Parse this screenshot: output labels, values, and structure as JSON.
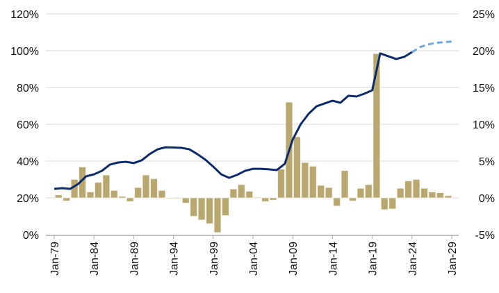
{
  "chart_data": {
    "type": "bar+line",
    "title": "",
    "grid": true,
    "legend": "none",
    "colors": {
      "bars": "#b8a870",
      "line": "#0b2a6b",
      "projection": "#6aa7e0",
      "grid": "#d9d9d9"
    },
    "x_tick_labels": [
      "Jan-79",
      "Jan-84",
      "Jan-89",
      "Jan-94",
      "Jan-99",
      "Jan-04",
      "Jan-09",
      "Jan-14",
      "Jan-19",
      "Jan-24",
      "Jan-29"
    ],
    "x_tick_years": [
      1979,
      1984,
      1989,
      1994,
      1999,
      2004,
      2009,
      2014,
      2019,
      2024,
      2029
    ],
    "left_axis": {
      "min": 0,
      "max": 120,
      "step": 20,
      "tick_labels": [
        "0%",
        "20%",
        "40%",
        "60%",
        "80%",
        "100%",
        "120%"
      ]
    },
    "right_axis": {
      "min": -5,
      "max": 25,
      "step": 5,
      "tick_labels": [
        "-5%",
        "0%",
        "5%",
        "10%",
        "15%",
        "20%",
        "25%"
      ]
    },
    "bars": {
      "axis": "right",
      "years": [
        1980,
        1981,
        1982,
        1983,
        1984,
        1985,
        1986,
        1987,
        1988,
        1989,
        1990,
        1991,
        1992,
        1993,
        1994,
        1995,
        1996,
        1997,
        1998,
        1999,
        2000,
        2001,
        2002,
        2003,
        2004,
        2005,
        2006,
        2007,
        2008,
        2009,
        2010,
        2011,
        2012,
        2013,
        2014,
        2015,
        2016,
        2017,
        2018,
        2019,
        2020,
        2021,
        2022,
        2023,
        2024,
        2025,
        2026,
        2027,
        2028,
        2029
      ],
      "values": [
        0.4,
        -0.4,
        2.5,
        4.2,
        0.8,
        2.1,
        3.1,
        1.0,
        0.2,
        -0.5,
        1.4,
        3.1,
        2.6,
        1.0,
        -0.1,
        -0.1,
        -0.7,
        -2.5,
        -3.0,
        -3.5,
        -4.7,
        -2.4,
        1.2,
        1.8,
        0.9,
        0.1,
        -0.5,
        -0.3,
        3.9,
        13.0,
        8.3,
        4.8,
        4.3,
        1.7,
        1.4,
        -1.1,
        3.7,
        -0.4,
        1.3,
        1.8,
        19.6,
        -1.6,
        -1.5,
        1.3,
        2.3,
        2.5,
        1.3,
        0.8,
        0.7,
        0.3
      ]
    },
    "line": {
      "axis": "left",
      "years": [
        1979,
        1980,
        1981,
        1982,
        1983,
        1984,
        1985,
        1986,
        1987,
        1988,
        1989,
        1990,
        1991,
        1992,
        1993,
        1994,
        1995,
        1996,
        1997,
        1998,
        1999,
        2000,
        2001,
        2002,
        2003,
        2004,
        2005,
        2006,
        2007,
        2008,
        2009,
        2010,
        2011,
        2012,
        2013,
        2014,
        2015,
        2016,
        2017,
        2018,
        2019,
        2020,
        2021,
        2022,
        2023,
        2024
      ],
      "values": [
        24.9,
        25.3,
        24.9,
        27.5,
        31.7,
        32.8,
        34.7,
        38.1,
        39.2,
        39.6,
        38.9,
        40.4,
        43.8,
        46.4,
        47.5,
        47.4,
        47.2,
        46.4,
        43.8,
        40.8,
        37.0,
        32.8,
        30.9,
        32.5,
        34.7,
        35.8,
        35.8,
        35.5,
        35.1,
        38.5,
        51.7,
        60.0,
        65.7,
        69.8,
        71.3,
        72.8,
        71.7,
        75.5,
        75.1,
        76.6,
        78.5,
        98.5,
        97.0,
        95.5,
        96.6,
        99.2
      ]
    },
    "projection": {
      "axis": "left",
      "years": [
        2024,
        2025,
        2026,
        2027,
        2028,
        2029
      ],
      "values": [
        99.2,
        101.9,
        103.4,
        104.2,
        104.7,
        104.9
      ]
    }
  }
}
